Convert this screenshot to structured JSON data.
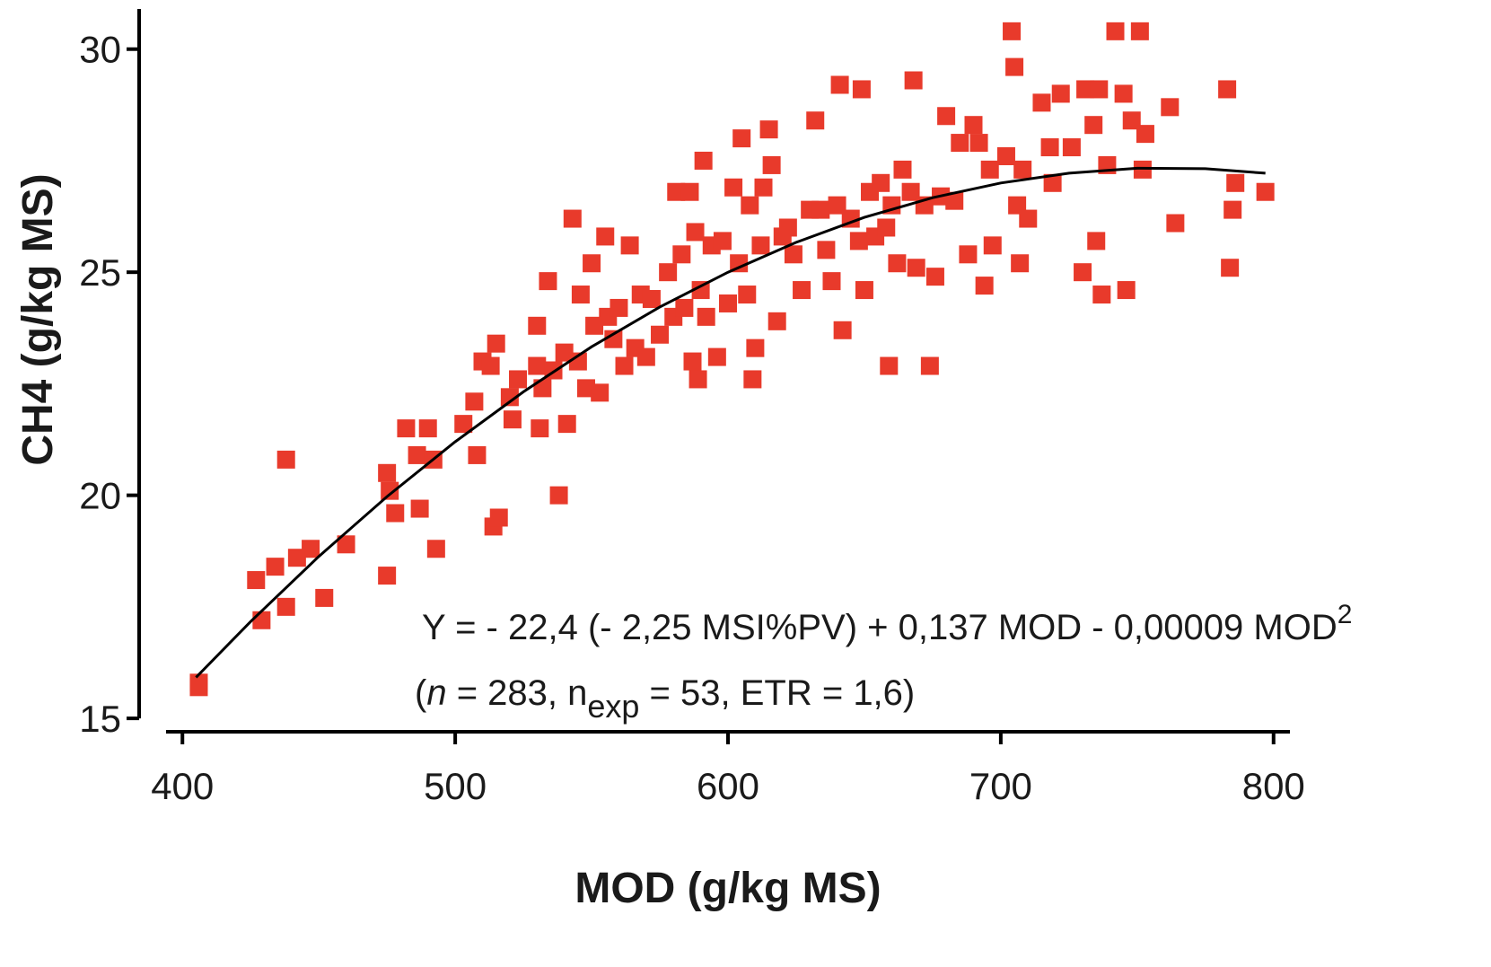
{
  "chart_data": {
    "type": "scatter",
    "x_label": "MOD (g/kg MS)",
    "y_label": "CH4 (g/kg MS)",
    "xlim": [
      394,
      806
    ],
    "ylim": [
      14.7,
      30.9
    ],
    "xticks": [
      400,
      500,
      600,
      700,
      800
    ],
    "yticks": [
      15,
      20,
      25,
      30
    ],
    "series": [
      {
        "type": "scatter",
        "color": "#e83a2b",
        "x": [
          406,
          406,
          427,
          429,
          434,
          438,
          438,
          442,
          447,
          452,
          460,
          475,
          475,
          476,
          478,
          482,
          486,
          487,
          490,
          492,
          493,
          503,
          507,
          508,
          510,
          513,
          514,
          515,
          516,
          520,
          521,
          523,
          530,
          530,
          531,
          532,
          534,
          536,
          538,
          540,
          541,
          543,
          545,
          546,
          548,
          550,
          551,
          553,
          555,
          556,
          558,
          560,
          562,
          564,
          566,
          568,
          570,
          572,
          575,
          578,
          580,
          581,
          583,
          584,
          586,
          587,
          588,
          589,
          590,
          591,
          592,
          594,
          596,
          598,
          600,
          602,
          604,
          605,
          607,
          608,
          609,
          610,
          612,
          613,
          615,
          616,
          618,
          620,
          622,
          624,
          627,
          630,
          632,
          634,
          636,
          638,
          640,
          641,
          642,
          645,
          648,
          649,
          650,
          652,
          654,
          656,
          658,
          659,
          660,
          662,
          664,
          667,
          668,
          669,
          672,
          674,
          676,
          678,
          680,
          683,
          685,
          688,
          690,
          692,
          694,
          696,
          697,
          702,
          704,
          705,
          706,
          707,
          708,
          710,
          715,
          718,
          719,
          722,
          726,
          730,
          731,
          734,
          735,
          736,
          737,
          739,
          742,
          745,
          746,
          748,
          751,
          752,
          753,
          762,
          764,
          783,
          784,
          785,
          786,
          797
        ],
        "values": [
          15.8,
          15.7,
          18.1,
          17.2,
          18.4,
          17.5,
          20.8,
          18.6,
          18.8,
          17.7,
          18.9,
          18.2,
          20.5,
          20.1,
          19.6,
          21.5,
          20.9,
          19.7,
          21.5,
          20.8,
          18.8,
          21.6,
          22.1,
          20.9,
          23.0,
          22.9,
          19.3,
          23.4,
          19.5,
          22.2,
          21.7,
          22.6,
          23.8,
          22.9,
          21.5,
          22.4,
          24.8,
          22.8,
          20.0,
          23.2,
          21.6,
          26.2,
          23.0,
          24.5,
          22.4,
          25.2,
          23.8,
          22.3,
          25.8,
          24.0,
          23.5,
          24.2,
          22.9,
          25.6,
          23.3,
          24.5,
          23.1,
          24.4,
          23.6,
          25.0,
          24.0,
          26.8,
          25.4,
          24.2,
          26.8,
          23.0,
          25.9,
          22.6,
          24.6,
          27.5,
          24.0,
          25.6,
          23.1,
          25.7,
          24.3,
          26.9,
          25.2,
          28.0,
          24.5,
          26.5,
          22.6,
          23.3,
          25.6,
          26.9,
          28.2,
          27.4,
          23.9,
          25.8,
          26.0,
          25.4,
          24.6,
          26.4,
          28.4,
          26.4,
          25.5,
          24.8,
          26.5,
          29.2,
          23.7,
          26.2,
          25.7,
          29.1,
          24.6,
          26.8,
          25.8,
          27.0,
          26.0,
          22.9,
          26.5,
          25.2,
          27.3,
          26.8,
          29.3,
          25.1,
          26.5,
          22.9,
          24.9,
          26.7,
          28.5,
          26.6,
          27.9,
          25.4,
          28.3,
          27.9,
          24.7,
          27.3,
          25.6,
          27.6,
          30.4,
          29.6,
          26.5,
          25.2,
          27.3,
          26.2,
          28.8,
          27.8,
          27.0,
          29.0,
          27.8,
          25.0,
          29.1,
          28.3,
          25.7,
          29.1,
          24.5,
          27.4,
          30.4,
          29.0,
          24.6,
          28.4,
          30.4,
          27.3,
          28.1,
          28.7,
          26.1,
          29.1,
          25.1,
          26.4,
          27.0,
          26.8
        ]
      },
      {
        "type": "line",
        "color": "#000000",
        "x": [
          405,
          425,
          450,
          475,
          500,
          525,
          550,
          575,
          600,
          625,
          650,
          675,
          700,
          725,
          750,
          775,
          797
        ],
        "values": [
          15.92,
          17.17,
          18.63,
          19.97,
          21.2,
          22.32,
          23.33,
          24.22,
          25.0,
          25.67,
          26.23,
          26.67,
          27.0,
          27.22,
          27.33,
          27.32,
          27.22
        ]
      }
    ],
    "annotations": [
      {
        "parts": [
          {
            "text": "Y = - 22,4 (- 2,25 MSI%PV) + 0,137 MOD - 0,00009 MOD",
            "style": "normal"
          },
          {
            "text": "2",
            "style": "sup"
          }
        ]
      },
      {
        "parts": [
          {
            "text": "(",
            "style": "normal"
          },
          {
            "text": "n",
            "style": "italic"
          },
          {
            "text": " = 283, n",
            "style": "normal"
          },
          {
            "text": "exp",
            "style": "sub"
          },
          {
            "text": " = 53, ETR = 1,6)",
            "style": "normal"
          }
        ]
      }
    ]
  }
}
